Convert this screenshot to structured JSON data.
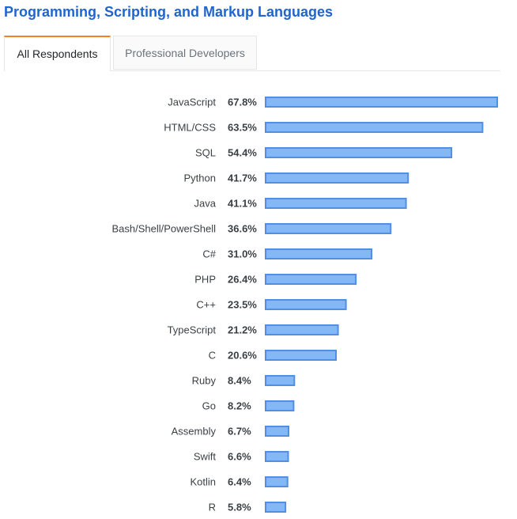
{
  "header": {
    "title": "Programming, Scripting, and Markup Languages"
  },
  "tabs": [
    {
      "label": "All Respondents",
      "active": true
    },
    {
      "label": "Professional Developers",
      "active": false
    }
  ],
  "colors": {
    "title": "#1f65cf",
    "tab_accent": "#f48024",
    "bar_fill": "#84b7f5",
    "bar_stroke": "#4f8fe6"
  },
  "chart_data": {
    "type": "bar",
    "orientation": "horizontal",
    "categories": [
      "JavaScript",
      "HTML/CSS",
      "SQL",
      "Python",
      "Java",
      "Bash/Shell/PowerShell",
      "C#",
      "PHP",
      "C++",
      "TypeScript",
      "C",
      "Ruby",
      "Go",
      "Assembly",
      "Swift",
      "Kotlin",
      "R"
    ],
    "values": [
      67.8,
      63.5,
      54.4,
      41.7,
      41.1,
      36.6,
      31.0,
      26.4,
      23.5,
      21.2,
      20.6,
      8.4,
      8.2,
      6.7,
      6.6,
      6.4,
      5.8
    ],
    "value_labels": [
      "67.8%",
      "63.5%",
      "54.4%",
      "41.7%",
      "41.1%",
      "36.6%",
      "31.0%",
      "26.4%",
      "23.5%",
      "21.2%",
      "20.6%",
      "8.4%",
      "8.2%",
      "6.7%",
      "6.6%",
      "6.4%",
      "5.8%"
    ],
    "xlim": [
      0,
      67.8
    ],
    "grid": false,
    "legend": "none"
  }
}
